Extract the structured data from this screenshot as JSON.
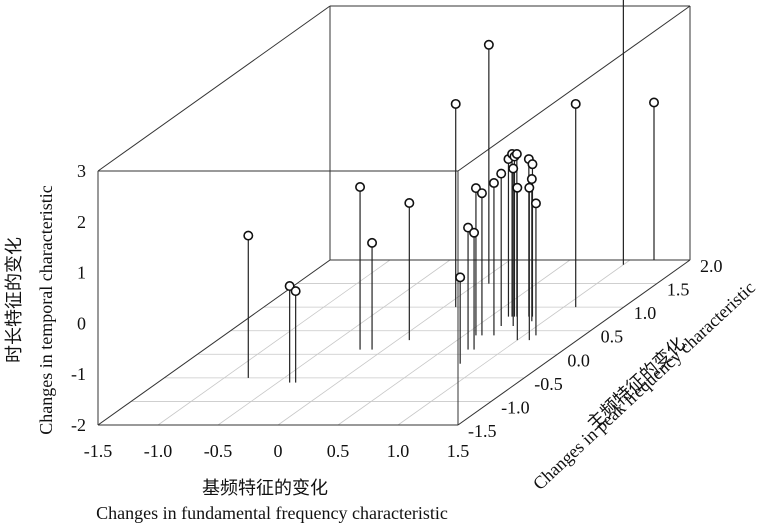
{
  "chart_data": {
    "type": "scatter",
    "subtype": "3d-stem",
    "xlabel_cn": "基频特征的变化",
    "xlabel": "Changes in fundamental frequency characteristic",
    "ylabel_cn": "主频特征的变化",
    "ylabel": "Changes in peak frequency characteristic",
    "zlabel_cn": "时长特征的变化",
    "zlabel": "Changes in temporal characteristic",
    "xlim": [
      -1.5,
      1.5
    ],
    "ylim": [
      -1.5,
      2.0
    ],
    "zlim": [
      -2,
      3
    ],
    "xticks": [
      "-1.5",
      "-1.0",
      "-0.5",
      "0",
      "0.5",
      "1.0",
      "1.5"
    ],
    "yticks": [
      "-1.5",
      "-1.0",
      "-0.5",
      "0.0",
      "0.5",
      "1.0",
      "1.5",
      "2.0"
    ],
    "zticks": [
      "-2",
      "-1",
      "0",
      "1",
      "2",
      "3"
    ],
    "grid": true,
    "points": [
      {
        "x": -0.8,
        "y": -0.5,
        "z": 0.8
      },
      {
        "x": -0.4,
        "y": -0.6,
        "z": -0.1
      },
      {
        "x": -0.35,
        "y": -0.6,
        "z": -0.2
      },
      {
        "x": -0.2,
        "y": 0.1,
        "z": 1.2
      },
      {
        "x": -0.1,
        "y": 0.1,
        "z": 0.1
      },
      {
        "x": 0.1,
        "y": 1.5,
        "z": 2.7
      },
      {
        "x": 0.1,
        "y": 1.0,
        "z": 2.0
      },
      {
        "x": 0.1,
        "y": 0.3,
        "z": 0.7
      },
      {
        "x": 0.6,
        "y": 0.4,
        "z": 0.9
      },
      {
        "x": 0.65,
        "y": 0.4,
        "z": 0.8
      },
      {
        "x": 0.65,
        "y": 0.8,
        "z": 1.1
      },
      {
        "x": 0.68,
        "y": 0.8,
        "z": 1.2
      },
      {
        "x": 0.7,
        "y": 0.8,
        "z": 1.15
      },
      {
        "x": 0.72,
        "y": 0.8,
        "z": 1.2
      },
      {
        "x": 0.7,
        "y": 0.6,
        "z": 1.0
      },
      {
        "x": 0.7,
        "y": 0.1,
        "z": 0.4
      },
      {
        "x": 0.75,
        "y": 0.1,
        "z": 0.3
      },
      {
        "x": 0.75,
        "y": 0.4,
        "z": 1.0
      },
      {
        "x": 0.8,
        "y": 0.6,
        "z": 1.1
      },
      {
        "x": 0.82,
        "y": 0.8,
        "z": 1.1
      },
      {
        "x": 0.85,
        "y": 0.8,
        "z": 1.0
      },
      {
        "x": 0.9,
        "y": 0.7,
        "z": 0.8
      },
      {
        "x": 0.8,
        "y": -0.2,
        "z": -0.3
      },
      {
        "x": 1.0,
        "y": 0.3,
        "z": 1.0
      },
      {
        "x": 1.1,
        "y": 0.3,
        "z": 1.0
      },
      {
        "x": 1.1,
        "y": 1.0,
        "z": 2.0
      },
      {
        "x": 1.0,
        "y": 1.9,
        "z": 3.4
      },
      {
        "x": 1.1,
        "y": 0.4,
        "z": 0.6
      },
      {
        "x": 1.2,
        "y": 2.0,
        "z": 1.1
      }
    ]
  }
}
